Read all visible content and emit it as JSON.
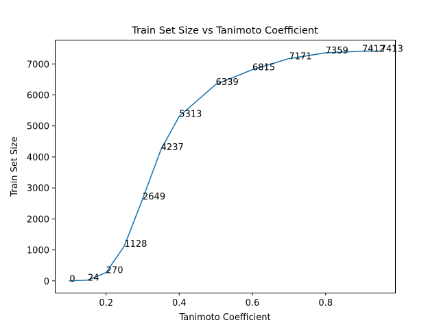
{
  "chart_data": {
    "type": "line",
    "title": "Train Set Size vs Tanimoto Coefficient",
    "xlabel": "Tanimoto Coefficient",
    "ylabel": "Train Set Size",
    "xlim": [
      0.06,
      0.99
    ],
    "ylim": [
      -380,
      7780
    ],
    "xticks": [
      0.2,
      0.4,
      0.6,
      0.8
    ],
    "xtick_labels": [
      "0.2",
      "0.4",
      "0.6",
      "0.8"
    ],
    "yticks": [
      0,
      1000,
      2000,
      3000,
      4000,
      5000,
      6000,
      7000
    ],
    "ytick_labels": [
      "0",
      "1000",
      "2000",
      "3000",
      "4000",
      "5000",
      "6000",
      "7000"
    ],
    "grid": false,
    "series": [
      {
        "color": "#1f77b4",
        "x": [
          0.1,
          0.15,
          0.2,
          0.25,
          0.3,
          0.35,
          0.4,
          0.5,
          0.6,
          0.7,
          0.8,
          0.9,
          0.95
        ],
        "values": [
          0,
          24,
          270,
          1128,
          2649,
          4237,
          5313,
          6339,
          6815,
          7171,
          7359,
          7412,
          7413
        ],
        "labels": [
          "0",
          "24",
          "270",
          "1128",
          "2649",
          "4237",
          "5313",
          "6339",
          "6815",
          "7171",
          "7359",
          "7412",
          "7413"
        ]
      }
    ]
  }
}
